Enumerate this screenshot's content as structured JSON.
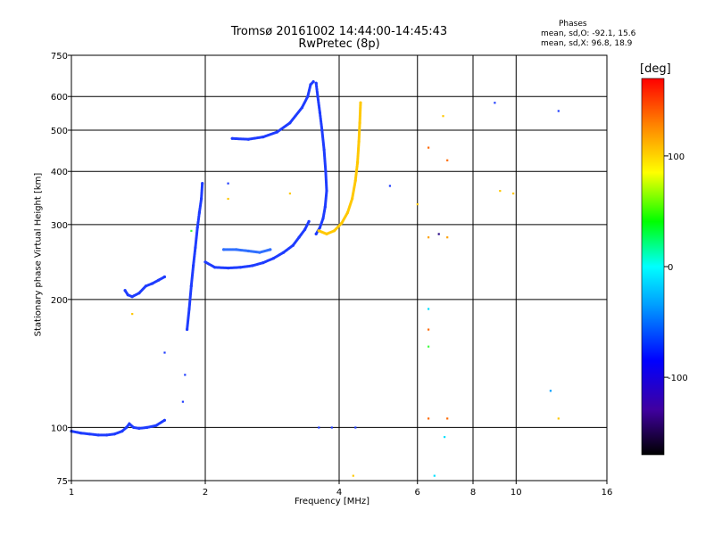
{
  "chart_data": {
    "type": "scatter",
    "title": "Tromsø 20161002 14:44:00-14:45:43",
    "subtitle": "RwPretec (8p)",
    "xlabel": "Frequency [MHz]",
    "ylabel": "Stationary phase Virtual Height [km]",
    "x_scale": "log",
    "y_scale": "log",
    "xlim": [
      1,
      16
    ],
    "ylim": [
      75,
      750
    ],
    "x_ticks": [
      1,
      2,
      4,
      6,
      8,
      10,
      16
    ],
    "x_tick_labels": [
      "1",
      "2",
      "4",
      "6",
      "8",
      "10",
      "16"
    ],
    "y_ticks": [
      75,
      100,
      200,
      300,
      400,
      500,
      600,
      750
    ],
    "y_tick_labels": [
      "75",
      "100",
      "200",
      "300",
      "400",
      "500",
      "600",
      "750"
    ],
    "grid": true,
    "phases": {
      "title": "Phases",
      "o_label": "mean, sd,O:",
      "o_values": "-92.1, 15.6",
      "x_label": "mean, sd,X:",
      "x_values": "96.8, 18.9"
    },
    "colorbar": {
      "label": "[deg]",
      "range": [
        -170,
        170
      ],
      "ticks": [
        100,
        0,
        -100
      ],
      "tick_labels": [
        "100",
        "0",
        "-100"
      ]
    },
    "traces": [
      {
        "name": "",
        "color": "#1e3cff",
        "points": [
          [
            1.0,
            98
          ],
          [
            1.05,
            97
          ],
          [
            1.1,
            96.5
          ],
          [
            1.15,
            96
          ],
          [
            1.2,
            96
          ],
          [
            1.25,
            96.5
          ],
          [
            1.3,
            98
          ],
          [
            1.33,
            100
          ],
          [
            1.35,
            102
          ],
          [
            1.38,
            100
          ],
          [
            1.42,
            99.5
          ],
          [
            1.48,
            100
          ],
          [
            1.55,
            101
          ],
          [
            1.62,
            104
          ]
        ]
      },
      {
        "name": "",
        "color": "#1e3cff",
        "points": [
          [
            1.32,
            210
          ],
          [
            1.34,
            205
          ],
          [
            1.37,
            203
          ],
          [
            1.42,
            207
          ],
          [
            1.47,
            215
          ],
          [
            1.52,
            218
          ],
          [
            1.57,
            222
          ],
          [
            1.62,
            226
          ]
        ]
      },
      {
        "name": "",
        "color": "#1e3cff",
        "points": [
          [
            1.82,
            170
          ],
          [
            1.84,
            190
          ],
          [
            1.86,
            215
          ],
          [
            1.88,
            240
          ],
          [
            1.9,
            265
          ],
          [
            1.92,
            295
          ],
          [
            1.94,
            320
          ],
          [
            1.96,
            345
          ],
          [
            1.97,
            375
          ]
        ]
      },
      {
        "name": "",
        "color": "#1e3cff",
        "points": [
          [
            2.0,
            245
          ],
          [
            2.1,
            238
          ],
          [
            2.25,
            237
          ],
          [
            2.4,
            238
          ],
          [
            2.55,
            240
          ],
          [
            2.7,
            244
          ],
          [
            2.85,
            250
          ],
          [
            3.0,
            258
          ],
          [
            3.15,
            268
          ],
          [
            3.25,
            280
          ],
          [
            3.35,
            292
          ],
          [
            3.42,
            305
          ]
        ]
      },
      {
        "name": "",
        "color": "#3070ff",
        "points": [
          [
            2.2,
            262
          ],
          [
            2.35,
            262
          ],
          [
            2.5,
            260
          ],
          [
            2.65,
            258
          ],
          [
            2.8,
            262
          ]
        ]
      },
      {
        "name": "",
        "color": "#1e3cff",
        "points": [
          [
            2.3,
            478
          ],
          [
            2.5,
            476
          ],
          [
            2.7,
            482
          ],
          [
            2.9,
            495
          ],
          [
            3.1,
            520
          ],
          [
            3.3,
            565
          ],
          [
            3.4,
            600
          ],
          [
            3.45,
            640
          ],
          [
            3.5,
            650
          ]
        ]
      },
      {
        "name": "",
        "color": "#1e3cff",
        "points": [
          [
            3.55,
            645
          ],
          [
            3.58,
            600
          ],
          [
            3.62,
            550
          ],
          [
            3.66,
            500
          ],
          [
            3.7,
            450
          ],
          [
            3.73,
            400
          ],
          [
            3.75,
            360
          ],
          [
            3.72,
            330
          ],
          [
            3.68,
            310
          ],
          [
            3.62,
            295
          ],
          [
            3.55,
            285
          ]
        ]
      },
      {
        "name": "",
        "color": "#ffc800",
        "points": [
          [
            3.6,
            290
          ],
          [
            3.75,
            285
          ],
          [
            3.9,
            290
          ],
          [
            4.05,
            302
          ],
          [
            4.18,
            320
          ],
          [
            4.28,
            345
          ],
          [
            4.35,
            380
          ],
          [
            4.4,
            420
          ],
          [
            4.43,
            470
          ],
          [
            4.45,
            520
          ],
          [
            4.47,
            580
          ]
        ]
      }
    ],
    "markers": [
      {
        "f": 1.37,
        "h": 185,
        "color": "#ffc800"
      },
      {
        "f": 1.62,
        "h": 150,
        "color": "#1e3cff"
      },
      {
        "f": 1.8,
        "h": 133,
        "color": "#1e3cff"
      },
      {
        "f": 1.78,
        "h": 115,
        "color": "#1e3cff"
      },
      {
        "f": 1.86,
        "h": 290,
        "color": "#40ff40"
      },
      {
        "f": 2.25,
        "h": 345,
        "color": "#ffc800"
      },
      {
        "f": 2.25,
        "h": 375,
        "color": "#1e3cff"
      },
      {
        "f": 3.1,
        "h": 355,
        "color": "#ffc800"
      },
      {
        "f": 3.6,
        "h": 100,
        "color": "#1e3cff"
      },
      {
        "f": 3.85,
        "h": 100,
        "color": "#1e3cff"
      },
      {
        "f": 4.35,
        "h": 100,
        "color": "#1e3cff"
      },
      {
        "f": 4.3,
        "h": 77,
        "color": "#ffc800"
      },
      {
        "f": 5.2,
        "h": 370,
        "color": "#1e3cff"
      },
      {
        "f": 6.0,
        "h": 335,
        "color": "#ffc800"
      },
      {
        "f": 6.35,
        "h": 455,
        "color": "#ff6a00"
      },
      {
        "f": 6.35,
        "h": 280,
        "color": "#ffa000"
      },
      {
        "f": 6.35,
        "h": 190,
        "color": "#00e0ff"
      },
      {
        "f": 6.35,
        "h": 170,
        "color": "#ff6a00"
      },
      {
        "f": 6.35,
        "h": 155,
        "color": "#40ff40"
      },
      {
        "f": 6.35,
        "h": 105,
        "color": "#ff6a00"
      },
      {
        "f": 6.55,
        "h": 77,
        "color": "#00e0ff"
      },
      {
        "f": 6.7,
        "h": 285,
        "color": "#200080"
      },
      {
        "f": 6.85,
        "h": 540,
        "color": "#ffc800"
      },
      {
        "f": 6.9,
        "h": 95,
        "color": "#00e0ff"
      },
      {
        "f": 7.0,
        "h": 280,
        "color": "#ffa000"
      },
      {
        "f": 7.0,
        "h": 425,
        "color": "#ff6a00"
      },
      {
        "f": 7.0,
        "h": 105,
        "color": "#ff6a00"
      },
      {
        "f": 8.95,
        "h": 580,
        "color": "#1e3cff"
      },
      {
        "f": 9.2,
        "h": 360,
        "color": "#ffc800"
      },
      {
        "f": 9.85,
        "h": 355,
        "color": "#ffc800"
      },
      {
        "f": 11.95,
        "h": 122,
        "color": "#00a0ff"
      },
      {
        "f": 12.45,
        "h": 555,
        "color": "#1e3cff"
      },
      {
        "f": 12.45,
        "h": 105,
        "color": "#ffc800"
      }
    ]
  }
}
